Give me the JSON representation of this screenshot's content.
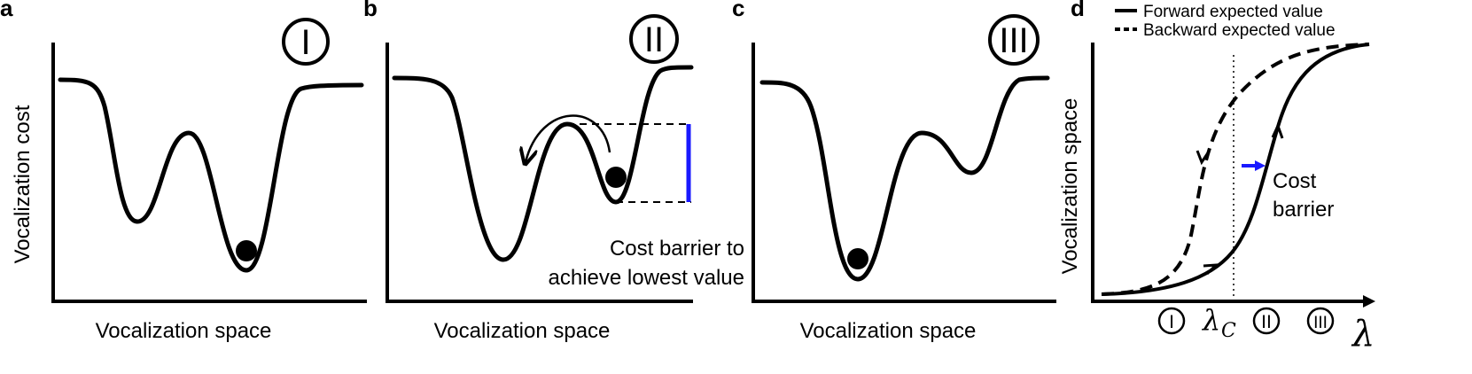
{
  "panels": {
    "a": {
      "letter": "a",
      "stage": "I",
      "y_label": "Vocalization cost",
      "x_label": "Vocalization space"
    },
    "b": {
      "letter": "b",
      "stage": "II",
      "x_label": "Vocalization space",
      "annotation_line1": "Cost barrier to",
      "annotation_line2": "achieve lowest value"
    },
    "c": {
      "letter": "c",
      "stage": "III",
      "x_label": "Vocalization space"
    },
    "d": {
      "letter": "d",
      "legend_forward": "Forward expected value",
      "legend_backward": "Backward expected value",
      "y_label": "Vocalization space",
      "x_label": "λ",
      "critical_label": "λ",
      "critical_sub": "C",
      "stage_I": "I",
      "stage_II": "II",
      "stage_III": "III",
      "cost_barrier_line1": "Cost",
      "cost_barrier_line2": "barrier"
    }
  },
  "colors": {
    "ink": "#000000",
    "barrier_accent": "#1a1aff"
  }
}
